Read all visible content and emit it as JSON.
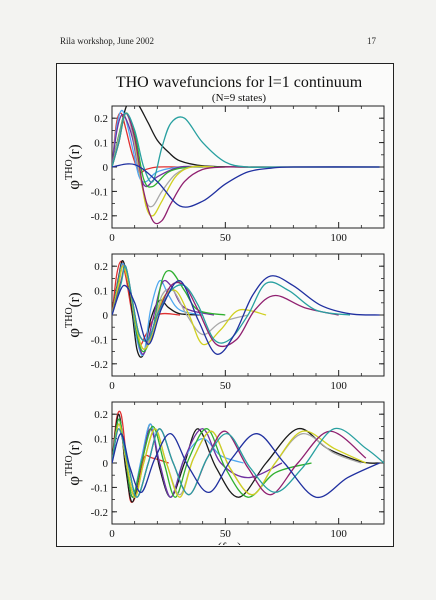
{
  "header": {
    "left": "Rila workshop, June 2002",
    "page_number": "17"
  },
  "title": "THO wavefuncions for l=1 continuum",
  "subtitle": "(N=9 states)",
  "chart_data": [
    {
      "type": "line",
      "ylabel": "φTHO(r)",
      "ylabel_main": "φ",
      "ylabel_super": "THO",
      "ylabel_tail": "(r)",
      "xlim": [
        0,
        120
      ],
      "ylim": [
        -0.25,
        0.25
      ],
      "xticks": [
        0,
        50,
        100
      ],
      "yticks": [
        0.2,
        0.1,
        0,
        -0.1,
        -0.2
      ],
      "ytick_labels": [
        "0.2",
        "0.1",
        "0",
        "-0.1",
        "-0.2"
      ],
      "series": [
        {
          "color": "#e03030",
          "x": [
            0,
            2,
            4,
            6,
            9,
            12,
            15,
            20,
            30,
            45
          ],
          "y": [
            0,
            0.18,
            0.22,
            0.16,
            0.05,
            -0.02,
            -0.01,
            0,
            0,
            0
          ]
        },
        {
          "color": "#1a1a1a",
          "x": [
            0,
            3,
            6,
            9,
            12,
            16,
            20,
            25,
            30,
            40,
            55,
            70,
            90,
            118
          ],
          "y": [
            0,
            0.12,
            0.24,
            0.28,
            0.25,
            0.18,
            0.11,
            0.06,
            0.025,
            0.005,
            0,
            0,
            0,
            0
          ]
        },
        {
          "color": "#4fa8f0",
          "x": [
            0,
            2,
            4,
            6,
            9,
            12,
            15,
            20,
            30,
            40
          ],
          "y": [
            0,
            0.16,
            0.23,
            0.2,
            0.08,
            -0.04,
            -0.06,
            -0.02,
            0,
            0
          ]
        },
        {
          "color": "#7030a0",
          "x": [
            0,
            2,
            4,
            6,
            9,
            12,
            15,
            20,
            30,
            40
          ],
          "y": [
            0,
            0.14,
            0.21,
            0.2,
            0.12,
            -0.02,
            -0.08,
            -0.04,
            0,
            0
          ]
        },
        {
          "color": "#30b030",
          "x": [
            0,
            3,
            6,
            10,
            14,
            18,
            25,
            35,
            50
          ],
          "y": [
            0,
            0.13,
            0.22,
            0.14,
            -0.05,
            -0.08,
            -0.02,
            0,
            0
          ]
        },
        {
          "color": "#a8a8a8",
          "x": [
            0,
            3,
            6,
            9,
            12,
            15,
            18,
            22,
            28,
            35,
            45
          ],
          "y": [
            0,
            0.12,
            0.22,
            0.14,
            -0.02,
            -0.14,
            -0.16,
            -0.1,
            -0.03,
            0,
            0
          ]
        },
        {
          "color": "#d0d020",
          "x": [
            0,
            3,
            6,
            9,
            12,
            15,
            18,
            22,
            28,
            35,
            45
          ],
          "y": [
            0,
            0.1,
            0.22,
            0.16,
            0.0,
            -0.16,
            -0.2,
            -0.14,
            -0.04,
            0,
            0
          ]
        },
        {
          "color": "#902070",
          "x": [
            0,
            3,
            6,
            10,
            14,
            18,
            22,
            26,
            32,
            40,
            50,
            60
          ],
          "y": [
            0,
            0.1,
            0.22,
            0.12,
            -0.1,
            -0.22,
            -0.22,
            -0.15,
            -0.06,
            -0.01,
            0,
            0
          ]
        },
        {
          "color": "#28a0a0",
          "x": [
            0,
            3,
            6,
            10,
            14,
            18,
            22,
            26,
            32,
            40,
            50,
            60,
            75,
            118
          ],
          "y": [
            0,
            0.1,
            0.22,
            0.15,
            0.0,
            -0.06,
            0.08,
            0.18,
            0.2,
            0.1,
            0.02,
            0,
            0,
            0
          ]
        },
        {
          "color": "#2030a0",
          "x": [
            0,
            10,
            20,
            30,
            40,
            50,
            60,
            70,
            80,
            118
          ],
          "y": [
            0,
            0.01,
            -0.06,
            -0.16,
            -0.14,
            -0.07,
            -0.02,
            -0.005,
            0,
            0
          ]
        }
      ]
    },
    {
      "type": "line",
      "ylabel": "φTHO(r)",
      "ylabel_main": "φ",
      "ylabel_super": "THO",
      "ylabel_tail": "(r)",
      "xlim": [
        0,
        120
      ],
      "ylim": [
        -0.25,
        0.25
      ],
      "xticks": [
        0,
        50,
        100
      ],
      "yticks": [
        0.2,
        0.1,
        0,
        -0.1,
        -0.2
      ],
      "ytick_labels": [
        "0.2",
        "0.1",
        "0",
        "-0.1",
        "-0.2"
      ],
      "series": [
        {
          "color": "#e03030",
          "x": [
            0,
            2,
            4,
            6,
            9,
            12,
            15,
            20,
            30
          ],
          "y": [
            0,
            0.16,
            0.22,
            0.16,
            0.0,
            -0.12,
            -0.08,
            0,
            0
          ]
        },
        {
          "color": "#1a1a1a",
          "x": [
            0,
            3,
            5,
            8,
            11,
            14,
            17,
            21,
            25,
            30,
            40
          ],
          "y": [
            0,
            0.16,
            0.22,
            0.08,
            -0.14,
            -0.16,
            -0.02,
            0.06,
            0.03,
            0.005,
            0
          ]
        },
        {
          "color": "#4fa8f0",
          "x": [
            0,
            3,
            5,
            8,
            11,
            14,
            17,
            21,
            25,
            30,
            40
          ],
          "y": [
            0,
            0.15,
            0.21,
            0.1,
            -0.1,
            -0.16,
            0.02,
            0.14,
            0.08,
            0.02,
            0
          ]
        },
        {
          "color": "#7030a0",
          "x": [
            0,
            3,
            5,
            8,
            11,
            14,
            18,
            22,
            26,
            32,
            45
          ],
          "y": [
            0,
            0.14,
            0.2,
            0.1,
            -0.08,
            -0.16,
            -0.02,
            0.13,
            0.12,
            0.03,
            0
          ]
        },
        {
          "color": "#30b030",
          "x": [
            0,
            3,
            5,
            8,
            11,
            14,
            18,
            22,
            26,
            32,
            38,
            50
          ],
          "y": [
            0,
            0.14,
            0.2,
            0.1,
            -0.08,
            -0.15,
            -0.06,
            0.14,
            0.18,
            0.1,
            0.02,
            0
          ]
        },
        {
          "color": "#a8a8a8",
          "x": [
            0,
            3,
            5,
            8,
            11,
            14,
            18,
            22,
            27,
            33,
            40,
            48,
            60
          ],
          "y": [
            0,
            0.13,
            0.2,
            0.1,
            -0.06,
            -0.14,
            -0.06,
            0.08,
            0.1,
            0.0,
            -0.08,
            -0.03,
            0
          ]
        },
        {
          "color": "#d0d020",
          "x": [
            0,
            3,
            5,
            8,
            11,
            14,
            18,
            22,
            28,
            34,
            40,
            48,
            56,
            68
          ],
          "y": [
            0,
            0.13,
            0.2,
            0.1,
            -0.06,
            -0.14,
            -0.08,
            0.06,
            0.1,
            0.0,
            -0.12,
            -0.06,
            0.02,
            0
          ]
        },
        {
          "color": "#902070",
          "x": [
            0,
            4,
            6,
            9,
            12,
            16,
            20,
            26,
            32,
            38,
            46,
            55,
            63,
            72,
            85,
            100
          ],
          "y": [
            0,
            0.14,
            0.2,
            0.06,
            -0.08,
            -0.1,
            0.0,
            0.12,
            0.12,
            0.02,
            -0.12,
            -0.1,
            0.02,
            0.08,
            0.03,
            0
          ]
        },
        {
          "color": "#28a0a0",
          "x": [
            0,
            4,
            6,
            9,
            12,
            16,
            20,
            26,
            32,
            38,
            45,
            52,
            60,
            68,
            78,
            90,
            105
          ],
          "y": [
            0,
            0.13,
            0.2,
            0.06,
            -0.08,
            -0.1,
            0.0,
            0.1,
            0.12,
            0.04,
            -0.1,
            -0.1,
            0.0,
            0.13,
            0.1,
            0.02,
            0
          ]
        },
        {
          "color": "#2030a0",
          "x": [
            0,
            5,
            10,
            16,
            22,
            30,
            38,
            46,
            54,
            62,
            70,
            80,
            92,
            105,
            118
          ],
          "y": [
            0,
            0.12,
            0.05,
            -0.12,
            0.03,
            0.14,
            -0.02,
            -0.16,
            -0.08,
            0.08,
            0.16,
            0.12,
            0.04,
            0.005,
            0
          ]
        }
      ]
    },
    {
      "type": "line",
      "ylabel": "φTHO(r)",
      "ylabel_main": "φ",
      "ylabel_super": "THO",
      "ylabel_tail": "(r)",
      "xlabel": "r (fm)",
      "xlim": [
        0,
        120
      ],
      "ylim": [
        -0.25,
        0.25
      ],
      "xticks": [
        0,
        50,
        100
      ],
      "yticks": [
        0.2,
        0.1,
        0,
        -0.1,
        -0.2
      ],
      "ytick_labels": [
        "0.2",
        "0.1",
        "0",
        "-0.1",
        "-0.2"
      ],
      "series": [
        {
          "color": "#e03030",
          "x": [
            0,
            2,
            4,
            6,
            8,
            11,
            14,
            18,
            25
          ],
          "y": [
            0,
            0.18,
            0.2,
            0.05,
            -0.15,
            -0.12,
            0.02,
            0.02,
            0
          ]
        },
        {
          "color": "#1a1a1a",
          "x": [
            0,
            3,
            6,
            9,
            13,
            17,
            21,
            26,
            32,
            38,
            46,
            56,
            68,
            82,
            95,
            110,
            118
          ],
          "y": [
            0,
            0.2,
            -0.02,
            -0.16,
            0.0,
            0.16,
            -0.02,
            -0.14,
            0.0,
            0.14,
            -0.02,
            -0.14,
            0.0,
            0.14,
            0.06,
            0.005,
            0
          ]
        },
        {
          "color": "#4fa8f0",
          "x": [
            0,
            3,
            6,
            9,
            13,
            17,
            21,
            26,
            32,
            40,
            48,
            58
          ],
          "y": [
            0,
            0.18,
            0.02,
            -0.14,
            0.02,
            0.16,
            0.0,
            -0.14,
            0.02,
            0.1,
            0.03,
            0
          ]
        },
        {
          "color": "#7030a0",
          "x": [
            0,
            3,
            6,
            9,
            13,
            17,
            21,
            26,
            32,
            40,
            48,
            60,
            75
          ],
          "y": [
            0,
            0.16,
            0.02,
            -0.14,
            0.0,
            0.14,
            0.0,
            -0.14,
            0.02,
            0.14,
            0.0,
            -0.06,
            0
          ]
        },
        {
          "color": "#30b030",
          "x": [
            0,
            3,
            6,
            9,
            13,
            18,
            23,
            28,
            34,
            42,
            50,
            60,
            72,
            88
          ],
          "y": [
            0,
            0.18,
            0.02,
            -0.14,
            0.0,
            0.15,
            0.0,
            -0.14,
            0.02,
            0.14,
            -0.02,
            -0.14,
            -0.04,
            0
          ]
        },
        {
          "color": "#a8a8a8",
          "x": [
            0,
            3,
            6,
            10,
            14,
            19,
            24,
            30,
            36,
            44,
            52,
            62,
            72,
            84,
            98,
            110
          ],
          "y": [
            0,
            0.16,
            0.02,
            -0.14,
            0.0,
            0.14,
            0.0,
            -0.13,
            0.02,
            0.13,
            -0.02,
            -0.13,
            0.0,
            0.12,
            0.04,
            0
          ]
        },
        {
          "color": "#d0d020",
          "x": [
            0,
            3,
            6,
            10,
            14,
            19,
            24,
            30,
            36,
            44,
            52,
            62,
            72,
            84,
            98,
            112
          ],
          "y": [
            0,
            0.16,
            0.02,
            -0.14,
            0.0,
            0.14,
            0.0,
            -0.14,
            0.02,
            0.13,
            -0.02,
            -0.13,
            0.0,
            0.13,
            0.06,
            0
          ]
        },
        {
          "color": "#902070",
          "x": [
            0,
            3,
            7,
            11,
            16,
            21,
            27,
            34,
            42,
            50,
            60,
            70,
            82,
            96,
            112
          ],
          "y": [
            0,
            0.14,
            0.0,
            -0.14,
            0.0,
            0.14,
            0.0,
            -0.13,
            0.02,
            0.13,
            -0.02,
            -0.13,
            0.0,
            0.13,
            0.02
          ]
        },
        {
          "color": "#28a0a0",
          "x": [
            0,
            3,
            7,
            11,
            16,
            21,
            27,
            34,
            42,
            51,
            61,
            72,
            84,
            98,
            112,
            120
          ],
          "y": [
            0,
            0.14,
            0.0,
            -0.14,
            0.0,
            0.14,
            0.0,
            -0.13,
            0.02,
            0.12,
            -0.02,
            -0.12,
            -0.02,
            0.14,
            0.06,
            0
          ]
        },
        {
          "color": "#2030a0",
          "x": [
            0,
            4,
            8,
            13,
            19,
            26,
            34,
            43,
            53,
            64,
            76,
            90,
            104,
            118
          ],
          "y": [
            0,
            0.12,
            -0.02,
            -0.12,
            0.02,
            0.12,
            -0.02,
            -0.12,
            0.02,
            0.12,
            0.0,
            -0.14,
            -0.06,
            0
          ]
        }
      ]
    }
  ]
}
